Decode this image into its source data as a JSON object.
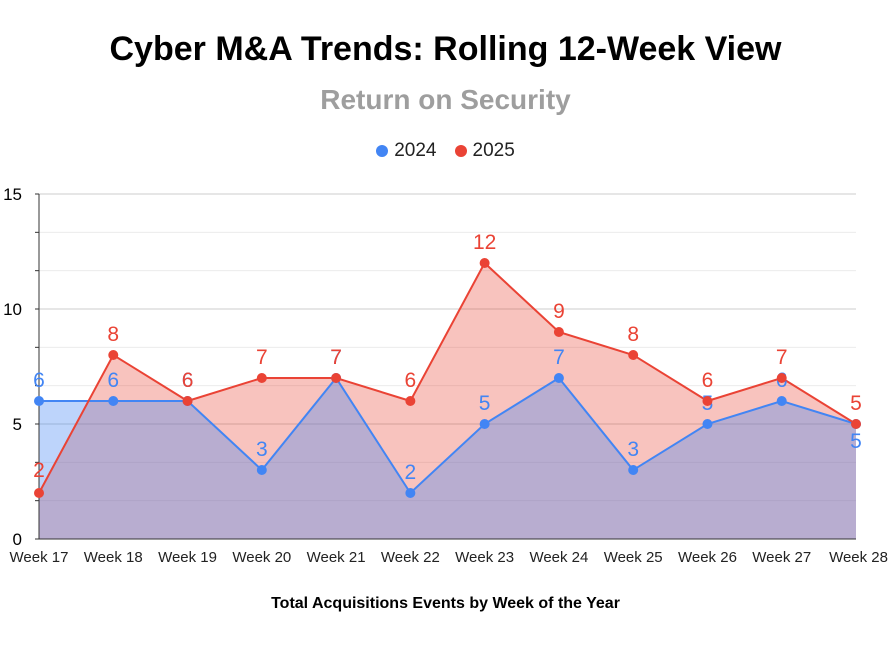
{
  "colors": {
    "series_2024": "#4285f4",
    "series_2025": "#ea4335"
  },
  "chart_data": {
    "type": "area",
    "title": "Cyber M&A Trends: Rolling 12-Week View",
    "subtitle": "Return on Security",
    "xlabel": "Total Acquisitions Events by Week of the Year",
    "ylabel": "",
    "ylim": [
      0,
      15
    ],
    "yticks": [
      "0",
      "5",
      "10",
      "15"
    ],
    "grid": true,
    "legend_position": "top",
    "categories": [
      "Week 17",
      "Week 18",
      "Week 19",
      "Week 20",
      "Week 21",
      "Week 22",
      "Week 23",
      "Week 24",
      "Week 25",
      "Week 26",
      "Week 27",
      "Week 28"
    ],
    "series": [
      {
        "name": "2024",
        "values": [
          6,
          6,
          6,
          3,
          7,
          2,
          5,
          7,
          3,
          5,
          6,
          5
        ]
      },
      {
        "name": "2025",
        "values": [
          2,
          8,
          6,
          7,
          7,
          6,
          12,
          9,
          8,
          6,
          7,
          5
        ]
      }
    ]
  }
}
